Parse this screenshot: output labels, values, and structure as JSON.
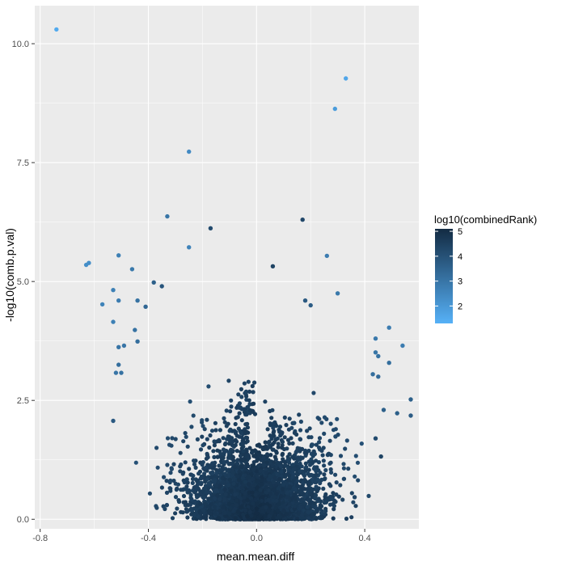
{
  "chart_data": {
    "type": "scatter",
    "xlabel": "mean.mean.diff",
    "ylabel": "-log10(comb.p.val)",
    "xlim": [
      -0.82,
      0.6
    ],
    "ylim": [
      -0.2,
      10.8
    ],
    "x_ticks": [
      {
        "value": -0.8,
        "label": "-0.8"
      },
      {
        "value": -0.4,
        "label": "-0.4"
      },
      {
        "value": 0.0,
        "label": "0.0"
      },
      {
        "value": 0.4,
        "label": "0.4"
      }
    ],
    "y_ticks": [
      {
        "value": 0.0,
        "label": "0.0"
      },
      {
        "value": 2.5,
        "label": "2.5"
      },
      {
        "value": 5.0,
        "label": "5.0"
      },
      {
        "value": 7.5,
        "label": "7.5"
      },
      {
        "value": 10.0,
        "label": "10.0"
      }
    ],
    "grid": true,
    "legend": {
      "title": "log10(combinedRank)",
      "placement": "right",
      "range": [
        1.3,
        5.1
      ],
      "ticks": [
        {
          "value": 5,
          "label": "5"
        },
        {
          "value": 4,
          "label": "4"
        },
        {
          "value": 3,
          "label": "3"
        },
        {
          "value": 2,
          "label": "2"
        }
      ],
      "color_low": "#56B1F7",
      "color_high": "#132B43"
    },
    "colors": {
      "panel": "#ebebeb",
      "grid": "#ffffff"
    },
    "points": [
      [
        -0.74,
        10.3,
        1.5
      ],
      [
        0.33,
        9.27,
        1.6
      ],
      [
        0.29,
        8.63,
        1.9
      ],
      [
        -0.25,
        7.73,
        2.4
      ],
      [
        -0.33,
        6.37,
        3.0
      ],
      [
        -0.17,
        6.12,
        4.2
      ],
      [
        0.17,
        6.3,
        4.3
      ],
      [
        -0.62,
        5.39,
        2.3
      ],
      [
        -0.63,
        5.35,
        2.3
      ],
      [
        -0.51,
        5.55,
        2.7
      ],
      [
        -0.25,
        5.72,
        2.6
      ],
      [
        0.26,
        5.54,
        2.8
      ],
      [
        -0.46,
        5.26,
        2.9
      ],
      [
        0.06,
        5.32,
        4.4
      ],
      [
        -0.38,
        4.98,
        3.6
      ],
      [
        -0.35,
        4.9,
        3.9
      ],
      [
        -0.53,
        4.82,
        2.7
      ],
      [
        -0.51,
        4.6,
        2.8
      ],
      [
        -0.57,
        4.52,
        2.6
      ],
      [
        -0.44,
        4.6,
        3.1
      ],
      [
        -0.41,
        4.47,
        3.4
      ],
      [
        -0.53,
        4.15,
        2.7
      ],
      [
        -0.49,
        3.65,
        3.0
      ],
      [
        -0.44,
        3.74,
        3.2
      ],
      [
        -0.45,
        3.98,
        3.1
      ],
      [
        -0.51,
        3.62,
        3.0
      ],
      [
        -0.51,
        3.25,
        3.2
      ],
      [
        -0.52,
        3.08,
        3.0
      ],
      [
        -0.5,
        3.08,
        3.1
      ],
      [
        -0.53,
        2.07,
        3.8
      ],
      [
        0.49,
        4.03,
        2.8
      ],
      [
        0.44,
        3.8,
        2.9
      ],
      [
        0.54,
        3.65,
        2.8
      ],
      [
        0.44,
        3.51,
        3.0
      ],
      [
        0.45,
        3.43,
        3.1
      ],
      [
        0.49,
        3.29,
        3.2
      ],
      [
        0.45,
        3.0,
        3.3
      ],
      [
        0.43,
        3.05,
        3.2
      ],
      [
        0.57,
        2.52,
        3.6
      ],
      [
        0.57,
        2.18,
        3.7
      ],
      [
        0.52,
        2.23,
        3.6
      ],
      [
        0.47,
        2.3,
        3.6
      ],
      [
        0.46,
        1.32,
        4.4
      ],
      [
        0.44,
        1.7,
        4.2
      ],
      [
        0.18,
        4.6,
        3.8
      ],
      [
        0.2,
        4.5,
        3.7
      ],
      [
        0.3,
        4.75,
        2.9
      ]
    ]
  }
}
